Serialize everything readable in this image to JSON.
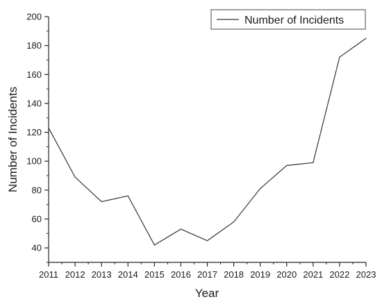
{
  "chart_data": {
    "type": "line",
    "xlabel": "Year",
    "ylabel": "Number of Incidents",
    "x": [
      2011,
      2012,
      2013,
      2014,
      2015,
      2016,
      2017,
      2018,
      2019,
      2020,
      2021,
      2022,
      2023
    ],
    "x_ticks": [
      "2011",
      "2012",
      "2013",
      "2014",
      "2015",
      "2016",
      "2017",
      "2018",
      "2019",
      "2020",
      "2021",
      "2022",
      "2023"
    ],
    "y_ticks": [
      "40",
      "60",
      "80",
      "100",
      "120",
      "140",
      "160",
      "180",
      "200"
    ],
    "ylim": [
      30,
      200
    ],
    "xlim": [
      2011,
      2023
    ],
    "grid": false,
    "legend_position": "top-right",
    "series": [
      {
        "name": "Number of Incidents",
        "values": [
          123,
          89,
          72,
          76,
          42,
          53,
          45,
          58,
          81,
          97,
          99,
          172,
          185
        ],
        "color": "#333333"
      }
    ]
  }
}
